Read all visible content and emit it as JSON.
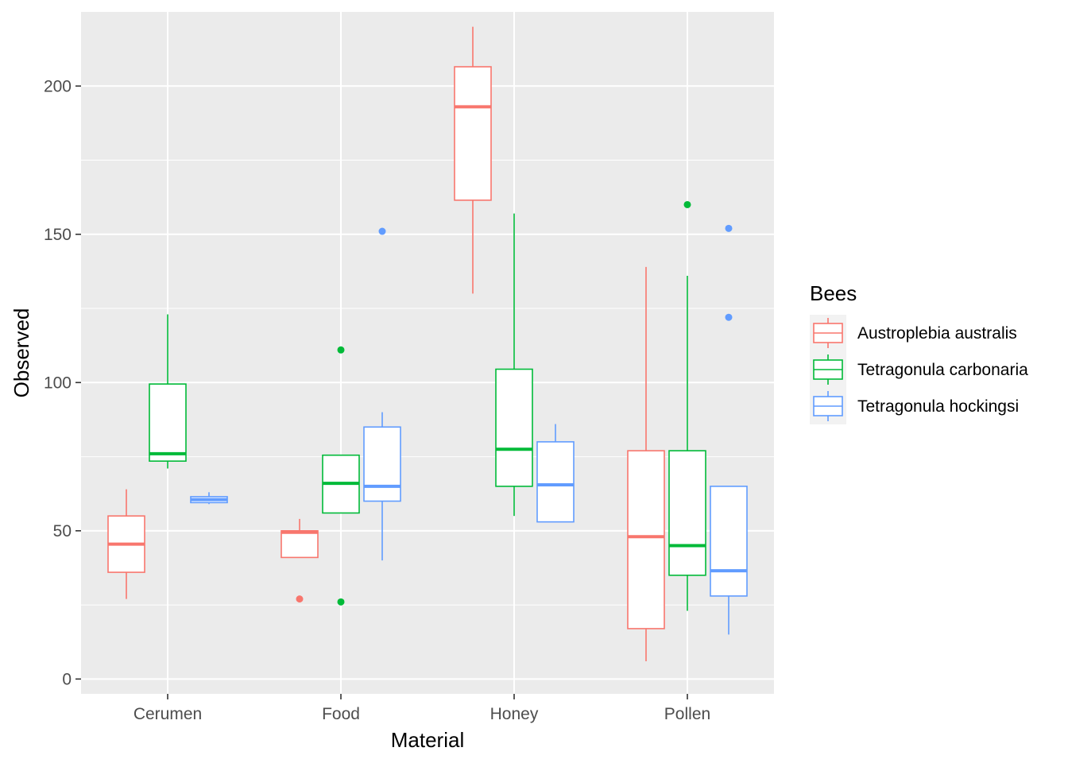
{
  "chart_data": {
    "type": "boxplot",
    "xlabel": "Material",
    "ylabel": "Observed",
    "ylim": [
      -5,
      225
    ],
    "y_ticks": [
      0,
      50,
      100,
      150,
      200
    ],
    "y_tick_labels": [
      "0",
      "50",
      "100",
      "150",
      "200"
    ],
    "grid": true,
    "legend_title": "Bees",
    "legend_position": "right",
    "categories": [
      "Cerumen",
      "Food",
      "Honey",
      "Pollen"
    ],
    "series": [
      {
        "name": "Austroplebia australis",
        "color": "#F8766D",
        "boxes": [
          {
            "category": "Cerumen",
            "min": 27,
            "q1": 36,
            "median": 45.5,
            "q3": 55,
            "max": 64,
            "outliers": []
          },
          {
            "category": "Food",
            "min": 41,
            "q1": 41,
            "median": 49.5,
            "q3": 50,
            "max": 54,
            "outliers": [
              27
            ]
          },
          {
            "category": "Honey",
            "min": 130,
            "q1": 161.5,
            "median": 193,
            "q3": 206.5,
            "max": 220,
            "outliers": []
          },
          {
            "category": "Pollen",
            "min": 6,
            "q1": 17,
            "median": 48,
            "q3": 77,
            "max": 139,
            "outliers": []
          }
        ]
      },
      {
        "name": "Tetragonula carbonaria",
        "color": "#00BA38",
        "boxes": [
          {
            "category": "Cerumen",
            "min": 71,
            "q1": 73.5,
            "median": 76,
            "q3": 99.5,
            "max": 123,
            "outliers": []
          },
          {
            "category": "Food",
            "min": 56,
            "q1": 56,
            "median": 66,
            "q3": 75.5,
            "max": 75.5,
            "outliers": [
              111,
              26
            ]
          },
          {
            "category": "Honey",
            "min": 55,
            "q1": 65,
            "median": 77.5,
            "q3": 104.5,
            "max": 157,
            "outliers": []
          },
          {
            "category": "Pollen",
            "min": 23,
            "q1": 35,
            "median": 45,
            "q3": 77,
            "max": 136,
            "outliers": [
              160
            ]
          }
        ]
      },
      {
        "name": "Tetragonula hockingsi",
        "color": "#619CFF",
        "boxes": [
          {
            "category": "Cerumen",
            "min": 59,
            "q1": 59.5,
            "median": 60.5,
            "q3": 61.5,
            "max": 63,
            "outliers": []
          },
          {
            "category": "Food",
            "min": 40,
            "q1": 60,
            "median": 65,
            "q3": 85,
            "max": 90,
            "outliers": [
              151
            ]
          },
          {
            "category": "Honey",
            "min": 53,
            "q1": 53,
            "median": 65.5,
            "q3": 80,
            "max": 86,
            "outliers": []
          },
          {
            "category": "Pollen",
            "min": 15,
            "q1": 28,
            "median": 36.5,
            "q3": 65,
            "max": 65,
            "outliers": [
              152,
              122
            ]
          }
        ]
      }
    ]
  }
}
